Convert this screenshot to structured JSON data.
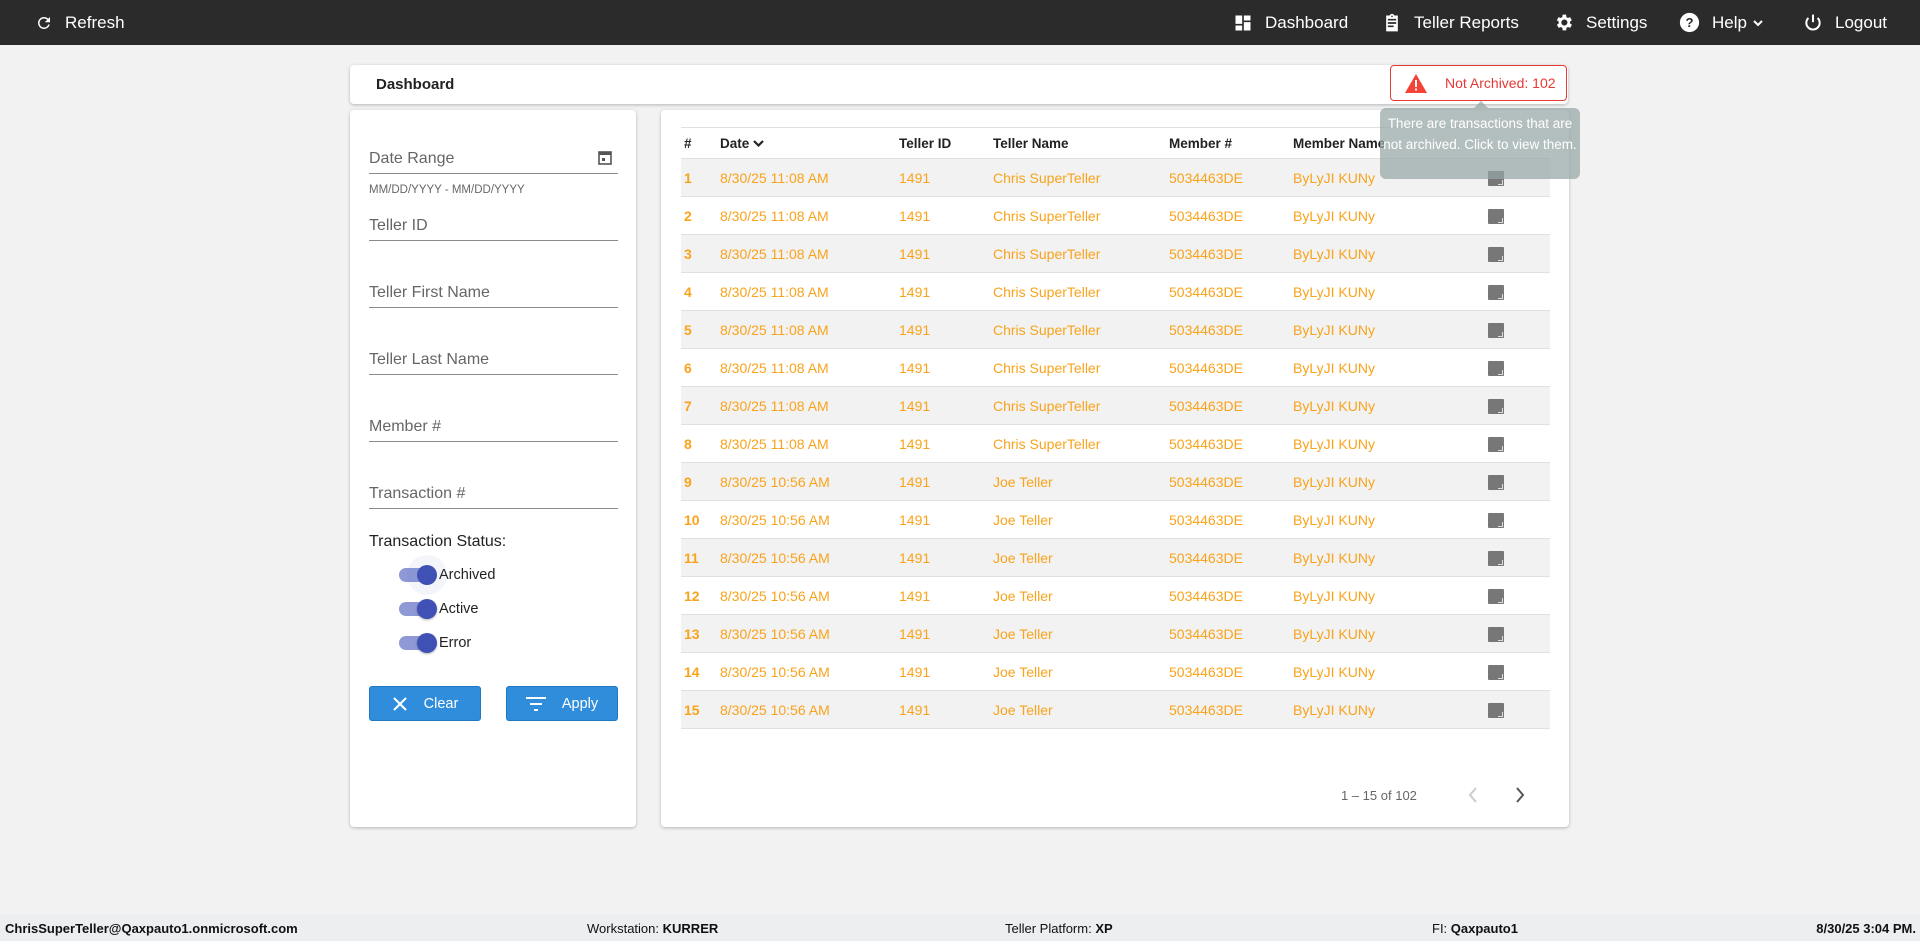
{
  "topbar": {
    "refresh": "Refresh",
    "nav": [
      {
        "label": "Dashboard",
        "icon": "dashboard-icon"
      },
      {
        "label": "Teller Reports",
        "icon": "clipboard-icon"
      },
      {
        "label": "Settings",
        "icon": "gear-icon"
      },
      {
        "label": "Help",
        "icon": "help-icon"
      },
      {
        "label": "Logout",
        "icon": "power-icon"
      }
    ]
  },
  "header": {
    "title": "Dashboard",
    "badge": "Not Archived: 102",
    "tooltip": "There are transactions that are not archived. Click to view them."
  },
  "filters": {
    "date_range": "Date Range",
    "date_hint": "MM/DD/YYYY - MM/DD/YYYY",
    "teller_id": "Teller ID",
    "first_name": "Teller First Name",
    "last_name": "Teller Last Name",
    "member": "Member #",
    "transaction": "Transaction #",
    "status_label": "Transaction Status:",
    "statuses": [
      {
        "label": "Archived",
        "on": true
      },
      {
        "label": "Active",
        "on": true
      },
      {
        "label": "Error",
        "on": true
      }
    ],
    "clear": "Clear",
    "apply": "Apply"
  },
  "table": {
    "columns": [
      "#",
      "Date",
      "Teller ID",
      "Teller Name",
      "Member #",
      "Member Name"
    ],
    "rows": [
      [
        "1",
        "8/30/25 11:08 AM",
        "1491",
        "Chris SuperTeller",
        "5034463DE",
        "ByLyJI KUNy"
      ],
      [
        "2",
        "8/30/25 11:08 AM",
        "1491",
        "Chris SuperTeller",
        "5034463DE",
        "ByLyJI KUNy"
      ],
      [
        "3",
        "8/30/25 11:08 AM",
        "1491",
        "Chris SuperTeller",
        "5034463DE",
        "ByLyJI KUNy"
      ],
      [
        "4",
        "8/30/25 11:08 AM",
        "1491",
        "Chris SuperTeller",
        "5034463DE",
        "ByLyJI KUNy"
      ],
      [
        "5",
        "8/30/25 11:08 AM",
        "1491",
        "Chris SuperTeller",
        "5034463DE",
        "ByLyJI KUNy"
      ],
      [
        "6",
        "8/30/25 11:08 AM",
        "1491",
        "Chris SuperTeller",
        "5034463DE",
        "ByLyJI KUNy"
      ],
      [
        "7",
        "8/30/25 11:08 AM",
        "1491",
        "Chris SuperTeller",
        "5034463DE",
        "ByLyJI KUNy"
      ],
      [
        "8",
        "8/30/25 11:08 AM",
        "1491",
        "Chris SuperTeller",
        "5034463DE",
        "ByLyJI KUNy"
      ],
      [
        "9",
        "8/30/25 10:56 AM",
        "1491",
        "Joe Teller",
        "5034463DE",
        "ByLyJI KUNy"
      ],
      [
        "10",
        "8/30/25 10:56 AM",
        "1491",
        "Joe Teller",
        "5034463DE",
        "ByLyJI KUNy"
      ],
      [
        "11",
        "8/30/25 10:56 AM",
        "1491",
        "Joe Teller",
        "5034463DE",
        "ByLyJI KUNy"
      ],
      [
        "12",
        "8/30/25 10:56 AM",
        "1491",
        "Joe Teller",
        "5034463DE",
        "ByLyJI KUNy"
      ],
      [
        "13",
        "8/30/25 10:56 AM",
        "1491",
        "Joe Teller",
        "5034463DE",
        "ByLyJI KUNy"
      ],
      [
        "14",
        "8/30/25 10:56 AM",
        "1491",
        "Joe Teller",
        "5034463DE",
        "ByLyJI KUNy"
      ],
      [
        "15",
        "8/30/25 10:56 AM",
        "1491",
        "Joe Teller",
        "5034463DE",
        "ByLyJI KUNy"
      ]
    ],
    "pagination": "1 – 15 of 102"
  },
  "footer": {
    "user": "ChrisSuperTeller@Qaxpauto1.onmicrosoft.com",
    "workstation_label": "Workstation:",
    "workstation": "KURRER",
    "platform_label": "Teller Platform:",
    "platform": "XP",
    "fi_label": "FI:",
    "fi": "Qaxpauto1",
    "datetime": "8/30/25 3:04 PM."
  },
  "colors": {
    "accent": "#f9a31b",
    "alert": "#e53935",
    "button": "#2f8ddb",
    "toggle": "#3f51b5"
  }
}
